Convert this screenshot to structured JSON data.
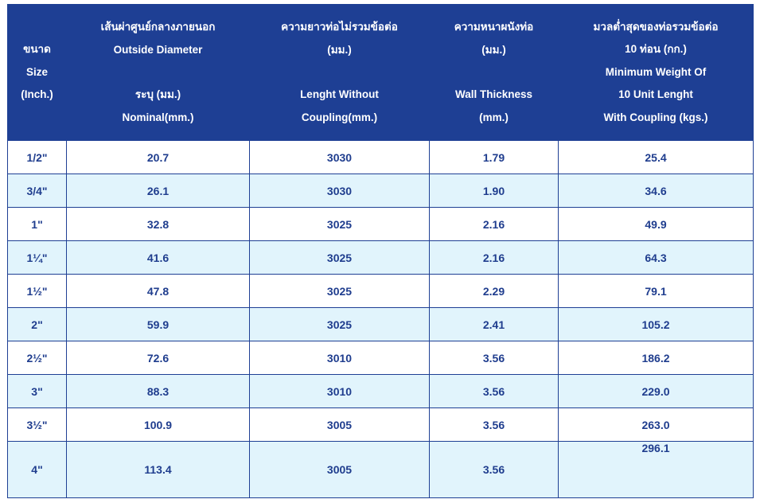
{
  "header": {
    "size": [
      "ขนาด",
      "Size",
      "(Inch.)"
    ],
    "outside_diameter": [
      "เส้นผ่าศูนย์กลางภายนอก",
      "Outside Diameter",
      "ระบุ (มม.)",
      "Nominal(mm.)"
    ],
    "length": [
      "ความยาวท่อไม่รวมข้อต่อ",
      "(มม.)",
      "Lenght Without",
      "Coupling(mm.)"
    ],
    "wall": [
      "ความหนาผนังท่อ",
      "(มม.)",
      "Wall Thickness",
      "(mm.)"
    ],
    "weight": [
      "มวลต่ำสุดของท่อรวมข้อต่อ",
      "10 ท่อน (กก.)",
      "Minimum Weight Of",
      "10 Unit Lenght",
      "With Coupling (kgs.)"
    ]
  },
  "rows": [
    {
      "size": "1/2\"",
      "od": "20.7",
      "length": "3030",
      "wall": "1.79",
      "weight": "25.4"
    },
    {
      "size": "3/4\"",
      "od": "26.1",
      "length": "3030",
      "wall": "1.90",
      "weight": "34.6"
    },
    {
      "size": "1\"",
      "od": "32.8",
      "length": "3025",
      "wall": "2.16",
      "weight": "49.9"
    },
    {
      "size": "1¼\"",
      "od": "41.6",
      "length": "3025",
      "wall": "2.16",
      "weight": "64.3"
    },
    {
      "size": "1½\"",
      "od": "47.8",
      "length": "3025",
      "wall": "2.29",
      "weight": "79.1"
    },
    {
      "size": "2\"",
      "od": "59.9",
      "length": "3025",
      "wall": "2.41",
      "weight": "105.2"
    },
    {
      "size": "2½\"",
      "od": "72.6",
      "length": "3010",
      "wall": "3.56",
      "weight": "186.2"
    },
    {
      "size": "3\"",
      "od": "88.3",
      "length": "3010",
      "wall": "3.56",
      "weight": "229.0"
    },
    {
      "size": "3½\"",
      "od": "100.9",
      "length": "3005",
      "wall": "3.56",
      "weight": "263.0"
    },
    {
      "size": "4\"",
      "od": "113.4",
      "length": "3005",
      "wall": "3.56",
      "weight": "296.1"
    }
  ],
  "colors": {
    "header_bg": "#1e3f94",
    "header_text": "#ffffff",
    "cell_text": "#1f3d8e",
    "row_alt": "#e1f4fc",
    "row_plain": "#ffffff"
  }
}
